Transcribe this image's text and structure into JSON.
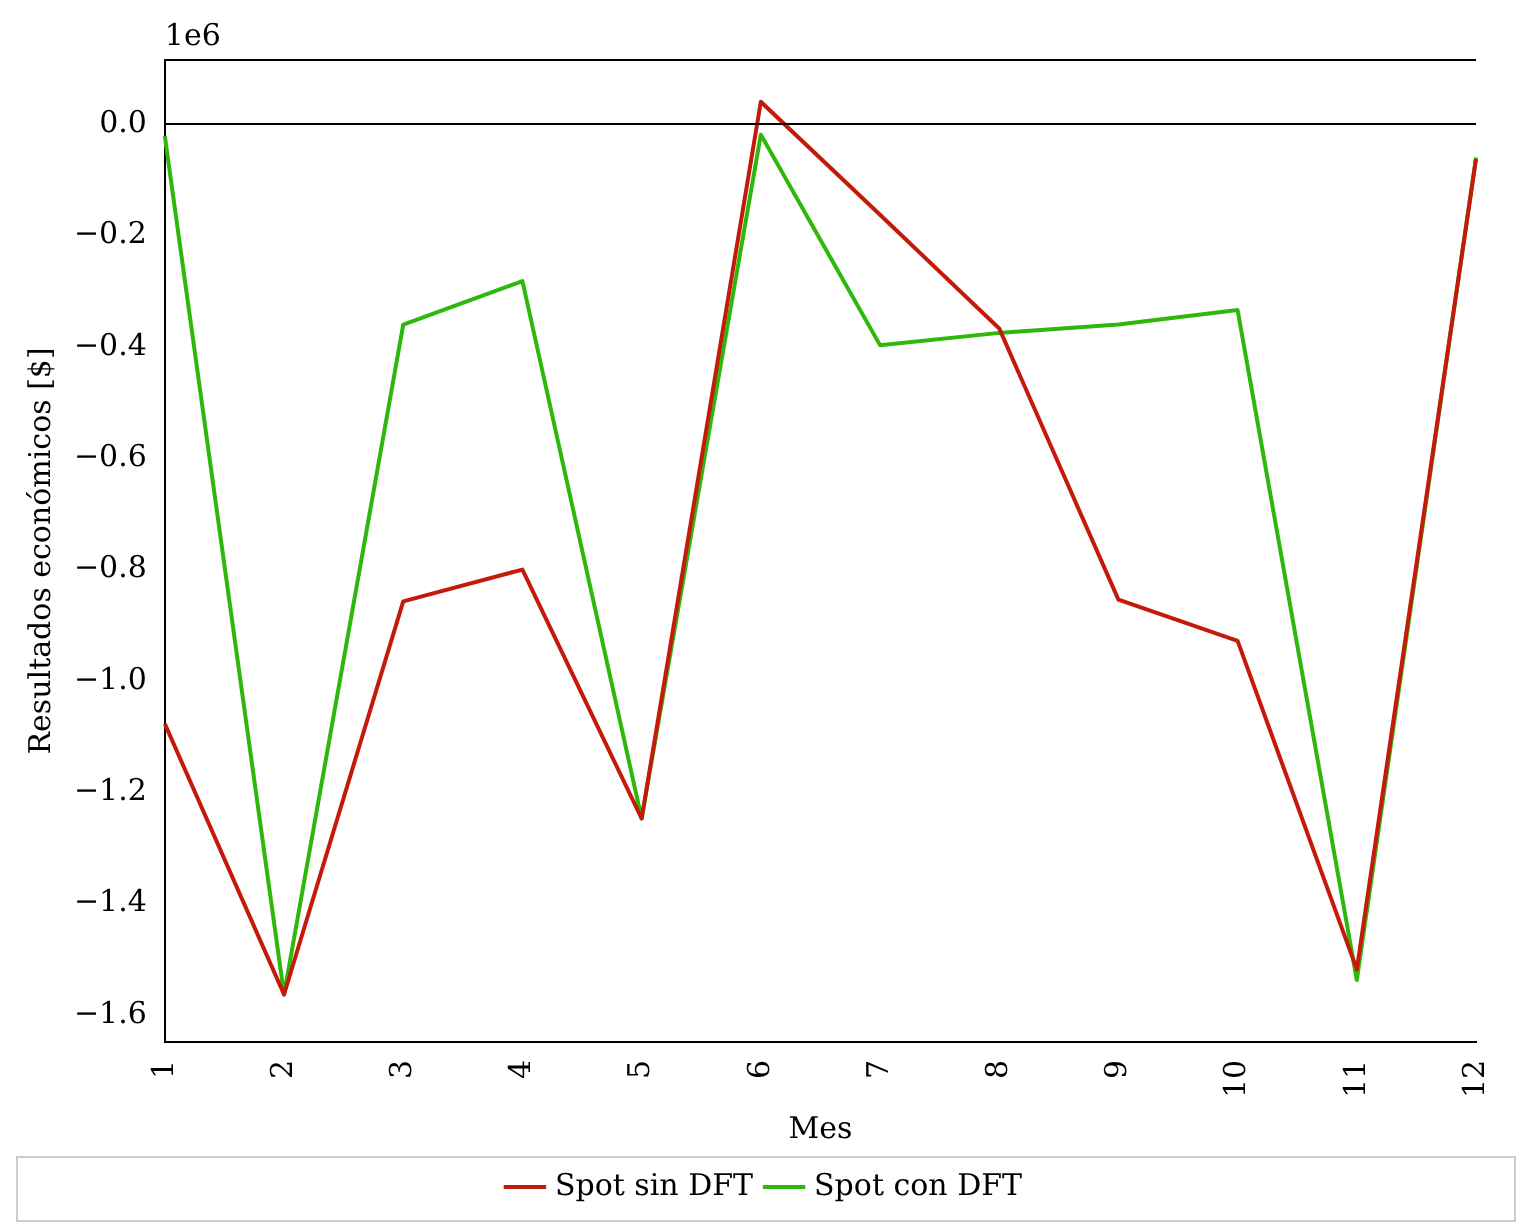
{
  "chart_data": {
    "type": "line",
    "xlabel": "Mes",
    "ylabel": "Resultados económicos [$]",
    "categories": [
      "1",
      "2",
      "3",
      "4",
      "5",
      "6",
      "7",
      "8",
      "9",
      "10",
      "11",
      "12"
    ],
    "series": [
      {
        "name": "Spot sin DFT",
        "color": "#c41a0c",
        "values": [
          -1.077,
          -1.563,
          -0.857,
          -0.8,
          -1.247,
          0.04,
          -0.163,
          -0.367,
          -0.854,
          -0.928,
          -1.518,
          -0.063
        ]
      },
      {
        "name": "Spot con DFT",
        "color": "#2eb80c",
        "values": [
          -0.022,
          -1.563,
          -0.36,
          -0.282,
          -1.247,
          -0.019,
          -0.397,
          -0.375,
          -0.36,
          -0.334,
          -1.537,
          -0.06
        ]
      }
    ],
    "ylim": [
      -1.648,
      0.115
    ],
    "yticks": [
      {
        "value": -1.6,
        "label": "−1.6"
      },
      {
        "value": -1.4,
        "label": "−1.4"
      },
      {
        "value": -1.2,
        "label": "−1.2"
      },
      {
        "value": -1.0,
        "label": "−1.0"
      },
      {
        "value": -0.8,
        "label": "−0.8"
      },
      {
        "value": -0.6,
        "label": "−0.6"
      },
      {
        "value": -0.4,
        "label": "−0.4"
      },
      {
        "value": -0.2,
        "label": "−0.2"
      },
      {
        "value": 0,
        "label": "0.0"
      }
    ],
    "ref_lines": [
      {
        "axis": "y",
        "value": 0,
        "color": "#000000"
      }
    ],
    "annotations": [
      "1e6"
    ],
    "legend": "bottom",
    "grid": false,
    "marker": "none",
    "line_style": "solid"
  }
}
